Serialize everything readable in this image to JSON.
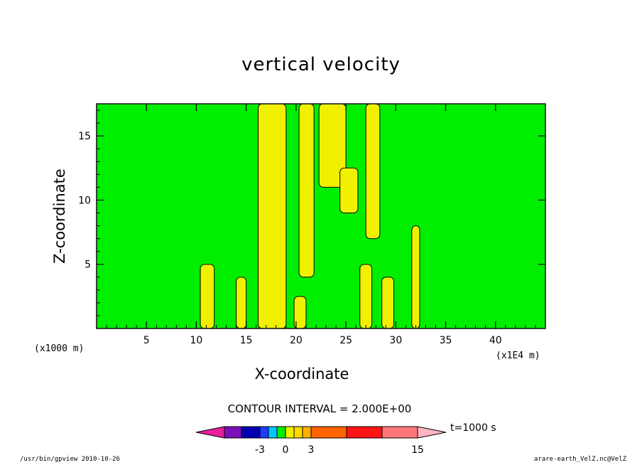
{
  "chart_data": {
    "type": "heatmap",
    "title": "vertical velocity",
    "xlabel": "X-coordinate",
    "ylabel": "Z-coordinate",
    "x_unit_left": "(x1000 m)",
    "x_unit_right": "(x1E4 m)",
    "xlim": [
      0,
      45
    ],
    "ylim": [
      0,
      17.5
    ],
    "x_ticks": [
      5,
      10,
      15,
      20,
      25,
      30,
      35,
      40
    ],
    "y_ticks": [
      5,
      10,
      15
    ],
    "background_level_color": "#00ee00",
    "regions": [
      {
        "kind": "yellow",
        "x": [
          16.2,
          19.0
        ],
        "y": [
          0,
          17.5
        ]
      },
      {
        "kind": "yellow",
        "x": [
          20.3,
          21.8
        ],
        "y": [
          4.0,
          17.5
        ]
      },
      {
        "kind": "yellow",
        "x": [
          22.3,
          25.0
        ],
        "y": [
          11.0,
          17.5
        ]
      },
      {
        "kind": "yellow",
        "x": [
          24.4,
          26.2
        ],
        "y": [
          9.0,
          12.5
        ]
      },
      {
        "kind": "yellow",
        "x": [
          27.0,
          28.4
        ],
        "y": [
          7.0,
          17.5
        ]
      },
      {
        "kind": "yellow",
        "x": [
          10.4,
          11.8
        ],
        "y": [
          0,
          5.0
        ]
      },
      {
        "kind": "yellow",
        "x": [
          14.0,
          15.0
        ],
        "y": [
          0,
          4.0
        ]
      },
      {
        "kind": "yellow",
        "x": [
          19.8,
          21.0
        ],
        "y": [
          0,
          2.5
        ]
      },
      {
        "kind": "yellow",
        "x": [
          26.4,
          27.6
        ],
        "y": [
          0,
          5.0
        ]
      },
      {
        "kind": "yellow",
        "x": [
          28.6,
          29.8
        ],
        "y": [
          0,
          4.0
        ]
      },
      {
        "kind": "yellow",
        "x": [
          31.6,
          32.4
        ],
        "y": [
          0,
          8.0
        ]
      }
    ],
    "colorbar": {
      "colors": [
        "#e8209a",
        "#7a10b8",
        "#0000b0",
        "#1e3cff",
        "#00c8ff",
        "#00ee00",
        "#f0f000",
        "#ffd800",
        "#ffb000",
        "#ff6400",
        "#ff1414",
        "#ff7878",
        "#ffb6c1"
      ],
      "tick_labels": [
        "-3",
        "0",
        "3",
        "15"
      ],
      "contour_interval_label": "CONTOUR INTERVAL = 2.000E+00",
      "time_label": "t=1000 s"
    },
    "legend": "none"
  },
  "footer": {
    "left": "/usr/bin/gpview   2010-10-26",
    "right": "arare-earth_VelZ.nc@VelZ"
  }
}
